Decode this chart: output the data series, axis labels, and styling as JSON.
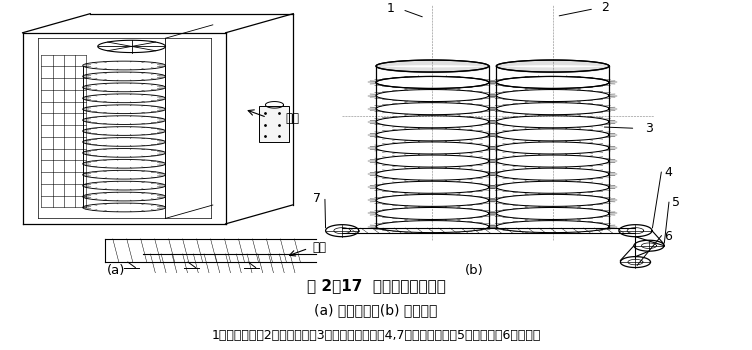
{
  "background_color": "#ffffff",
  "title_line": "图 2－17  螺旋带式冻结装置",
  "subtitle_line": "(a) 单转筒式；(b) 双转筒式",
  "caption_line": "1－上升转筒；2－下降转筒；3－不锈锂传送带；4,7－进出料链轮；5－固定轮；6－张紧轮",
  "label_a": "(a)",
  "label_b": "(b)",
  "chuliao": "出料",
  "jinliao": "进料",
  "fig_width": 7.52,
  "fig_height": 3.5,
  "dpi": 100
}
